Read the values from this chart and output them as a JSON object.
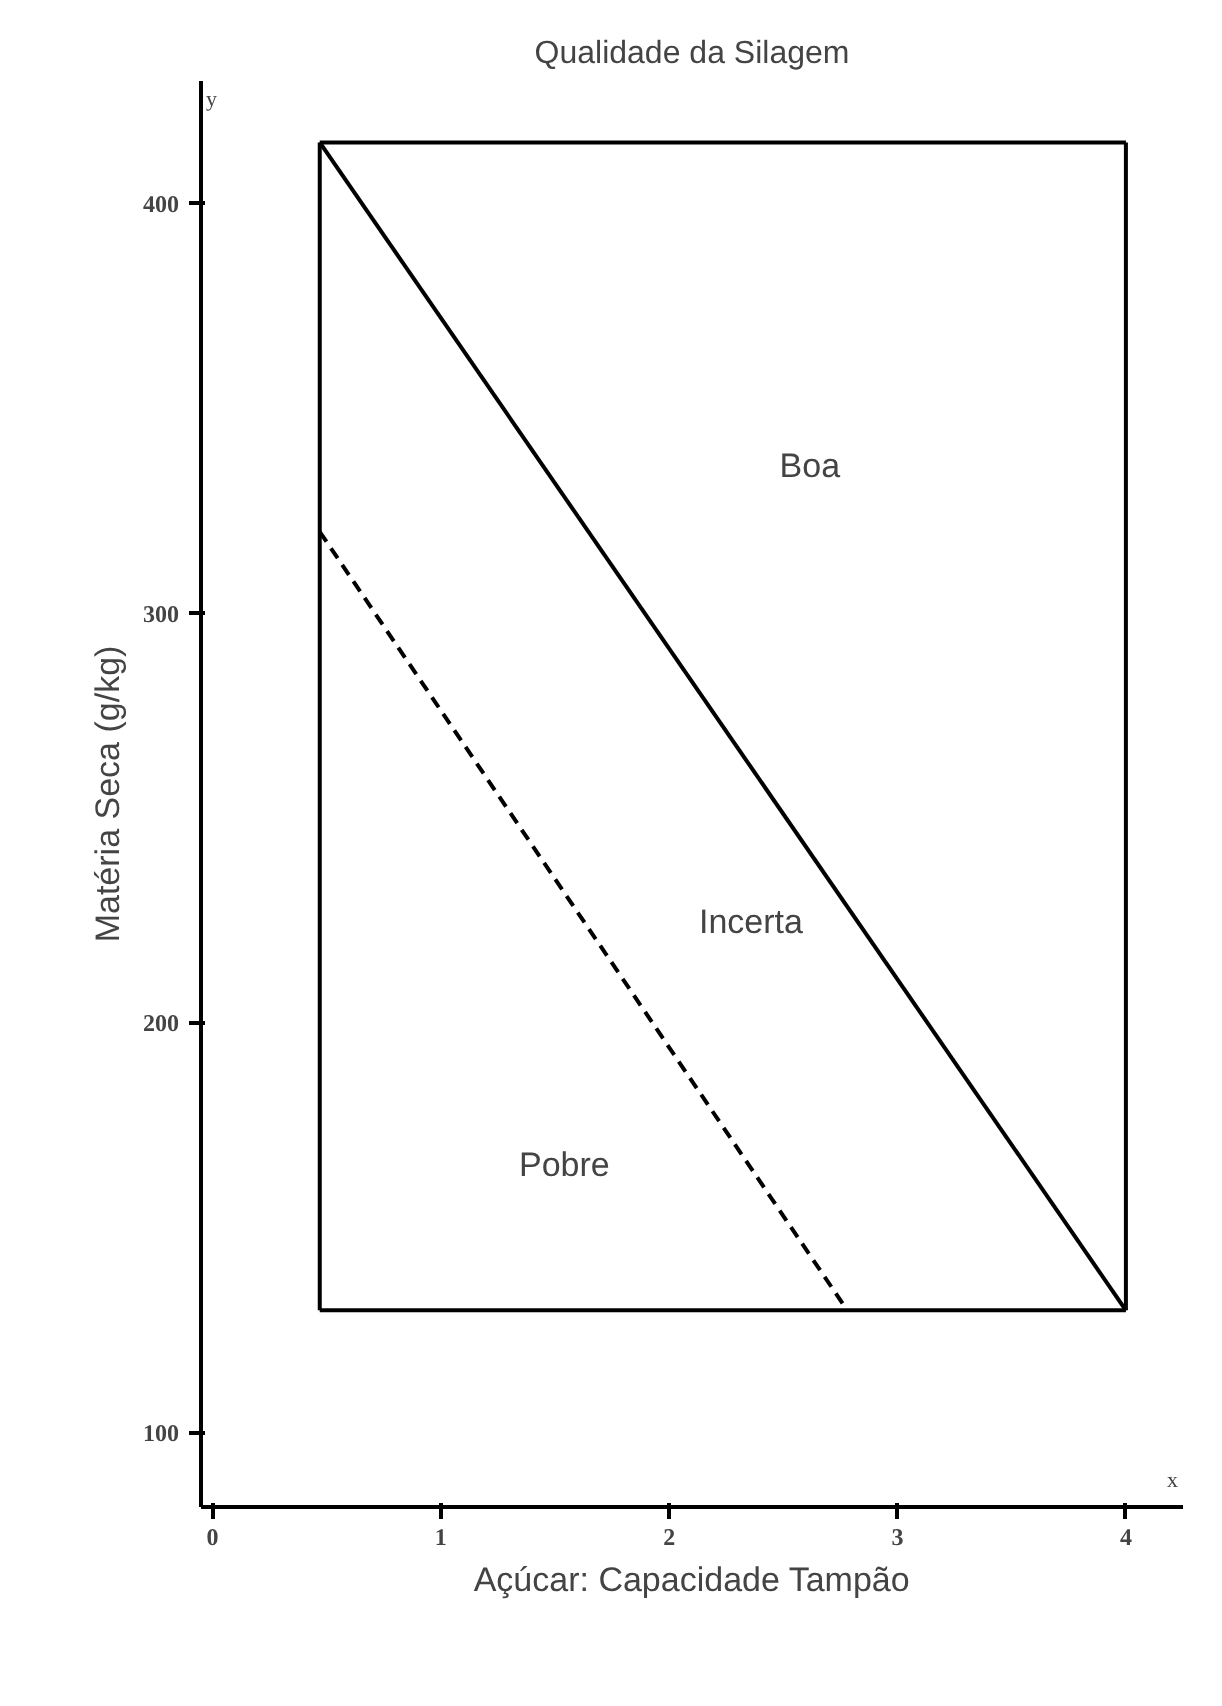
{
  "chart_data": {
    "type": "line",
    "title": "Qualidade da Silagem",
    "xlabel": "Açúcar: Capacidade Tampão",
    "ylabel": "Matéria Seca (g/kg)",
    "xlim": [
      -0.05,
      4.25
    ],
    "ylim": [
      82,
      430
    ],
    "xticks": [
      0,
      1,
      2,
      3,
      4
    ],
    "yticks": [
      100,
      200,
      300,
      400
    ],
    "grid": false,
    "marker": "none",
    "series": [
      {
        "color": "#000000",
        "x": [
          0.47,
          4.0
        ],
        "values": [
          415,
          130
        ],
        "line_style": "solid"
      },
      {
        "color": "#000000",
        "x": [
          0.47,
          2.78
        ],
        "values": [
          320,
          130
        ],
        "line_style": "dashed"
      },
      {
        "color": "#000000",
        "x": [
          0.47,
          4.0
        ],
        "values": [
          415,
          415
        ],
        "line_style": "solid"
      },
      {
        "color": "#000000",
        "x": [
          0.47,
          4.0
        ],
        "values": [
          130,
          130
        ],
        "line_style": "solid"
      },
      {
        "color": "#000000",
        "x": [
          0.47,
          0.47
        ],
        "values": [
          130,
          415
        ],
        "line_style": "solid"
      },
      {
        "color": "#000000",
        "x": [
          4.0,
          4.0
        ],
        "values": [
          130,
          415
        ],
        "line_style": "solid"
      }
    ],
    "annotations": [
      "Boa",
      "Incerta",
      "Pobre",
      "y",
      "x"
    ]
  }
}
